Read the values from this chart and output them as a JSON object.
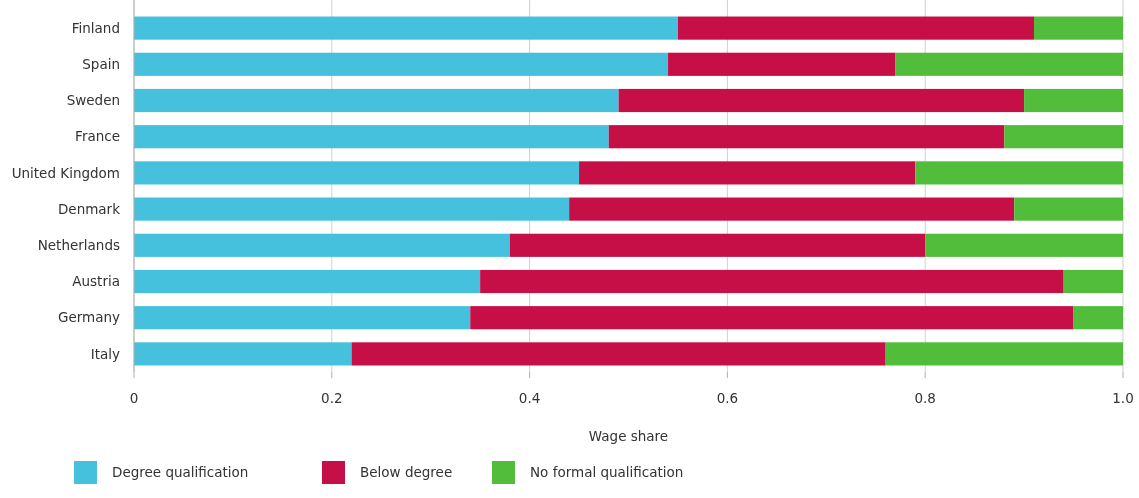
{
  "chart_data": {
    "type": "bar",
    "orientation": "horizontal",
    "stacked": true,
    "xlabel": "Wage share",
    "categories": [
      "Finland",
      "Spain",
      "Sweden",
      "France",
      "United Kingdom",
      "Denmark",
      "Netherlands",
      "Austria",
      "Germany",
      "Italy"
    ],
    "series": [
      {
        "name": "Degree qualification",
        "color": "#45c1dd",
        "values": [
          0.55,
          0.54,
          0.49,
          0.48,
          0.45,
          0.44,
          0.38,
          0.35,
          0.34,
          0.22
        ]
      },
      {
        "name": "Below degree",
        "color": "#c50f46",
        "values": [
          0.36,
          0.23,
          0.41,
          0.4,
          0.34,
          0.45,
          0.42,
          0.59,
          0.61,
          0.54
        ]
      },
      {
        "name": "No formal qualification",
        "color": "#52bd3a",
        "values": [
          0.09,
          0.23,
          0.1,
          0.12,
          0.21,
          0.11,
          0.2,
          0.06,
          0.05,
          0.24
        ]
      }
    ],
    "xlim": [
      0,
      1
    ],
    "xticks": [
      0,
      0.2,
      0.4,
      0.6,
      0.8,
      {
        "value": 1,
        "label": "1.0"
      }
    ],
    "grid": "x",
    "legend": "bottom left"
  }
}
